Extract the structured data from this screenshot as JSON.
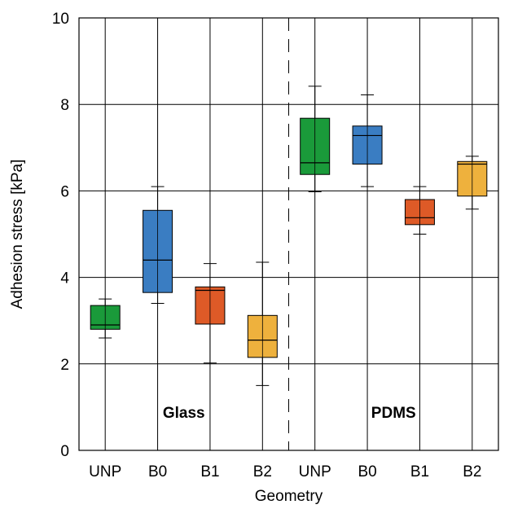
{
  "chart_data": {
    "type": "box",
    "xlabel": "Geometry",
    "ylabel": "Adhesion stress [kPa]",
    "ylim": [
      0,
      10
    ],
    "yticks": [
      0,
      2,
      4,
      6,
      8,
      10
    ],
    "grid": true,
    "categories": [
      "UNP",
      "B0",
      "B1",
      "B2",
      "UNP",
      "B0",
      "B1",
      "B2"
    ],
    "groups": [
      {
        "label": "Glass",
        "start": 0,
        "end": 3
      },
      {
        "label": "PDMS",
        "start": 4,
        "end": 7
      }
    ],
    "colors": {
      "UNP": "#1a9a3a",
      "B0": "#3a7dc2",
      "B1": "#de5a27",
      "B2": "#eeb13d"
    },
    "boxes": [
      {
        "category": "UNP",
        "group": "Glass",
        "min": 2.6,
        "q1": 2.8,
        "median": 2.9,
        "q3": 3.35,
        "max": 3.5
      },
      {
        "category": "B0",
        "group": "Glass",
        "min": 3.4,
        "q1": 3.65,
        "median": 4.4,
        "q3": 5.55,
        "max": 6.1
      },
      {
        "category": "B1",
        "group": "Glass",
        "min": 2.02,
        "q1": 2.92,
        "median": 3.7,
        "q3": 3.78,
        "max": 4.32
      },
      {
        "category": "B2",
        "group": "Glass",
        "min": 1.5,
        "q1": 2.15,
        "median": 2.55,
        "q3": 3.12,
        "max": 4.35
      },
      {
        "category": "UNP",
        "group": "PDMS",
        "min": 5.98,
        "q1": 6.38,
        "median": 6.65,
        "q3": 7.68,
        "max": 8.42
      },
      {
        "category": "B0",
        "group": "PDMS",
        "min": 6.1,
        "q1": 6.62,
        "median": 7.28,
        "q3": 7.5,
        "max": 8.22
      },
      {
        "category": "B1",
        "group": "PDMS",
        "min": 5.0,
        "q1": 5.22,
        "median": 5.38,
        "q3": 5.8,
        "max": 6.1
      },
      {
        "category": "B2",
        "group": "PDMS",
        "min": 5.58,
        "q1": 5.88,
        "median": 6.62,
        "q3": 6.68,
        "max": 6.8
      }
    ]
  }
}
